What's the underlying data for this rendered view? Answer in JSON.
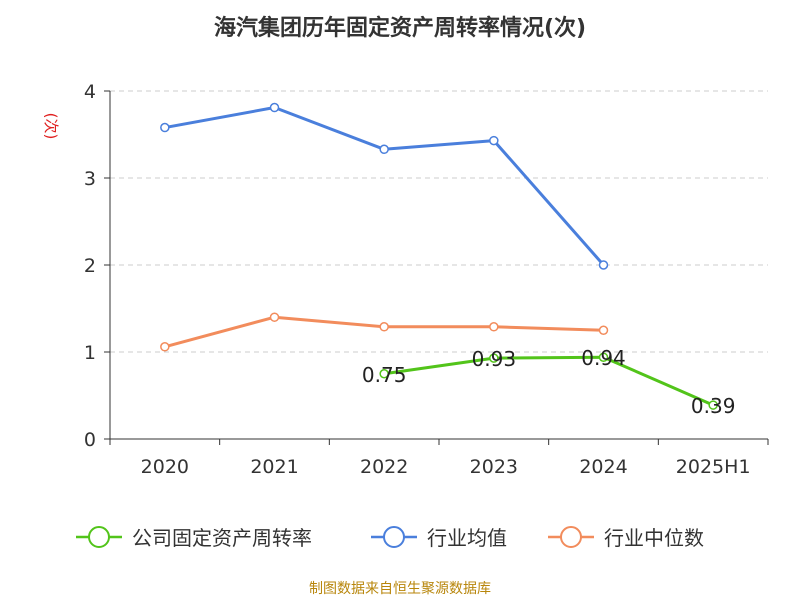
{
  "chart_data": {
    "type": "line",
    "title": "海汽集团历年固定资产周转率情况(次)",
    "ylabel": "(次)",
    "xlabel": "",
    "categories": [
      "2020",
      "2021",
      "2022",
      "2023",
      "2024",
      "2025H1"
    ],
    "ylim": [
      0,
      4
    ],
    "yticks": [
      0,
      1,
      2,
      3,
      4
    ],
    "grid": true,
    "legend_position": "bottom",
    "series": [
      {
        "name": "公司固定资产周转率",
        "color": "#52c41a",
        "values": [
          null,
          null,
          0.75,
          0.93,
          0.94,
          0.39
        ],
        "labels": [
          null,
          null,
          "0.75",
          "0.93",
          "0.94",
          "0.39"
        ]
      },
      {
        "name": "行业均值",
        "color": "#4a7fdc",
        "values": [
          3.58,
          3.81,
          3.33,
          3.43,
          2.0,
          null
        ]
      },
      {
        "name": "行业中位数",
        "color": "#f28c5c",
        "values": [
          1.06,
          1.4,
          1.29,
          1.29,
          1.25,
          null
        ]
      }
    ]
  },
  "source": "制图数据来自恒生聚源数据库"
}
